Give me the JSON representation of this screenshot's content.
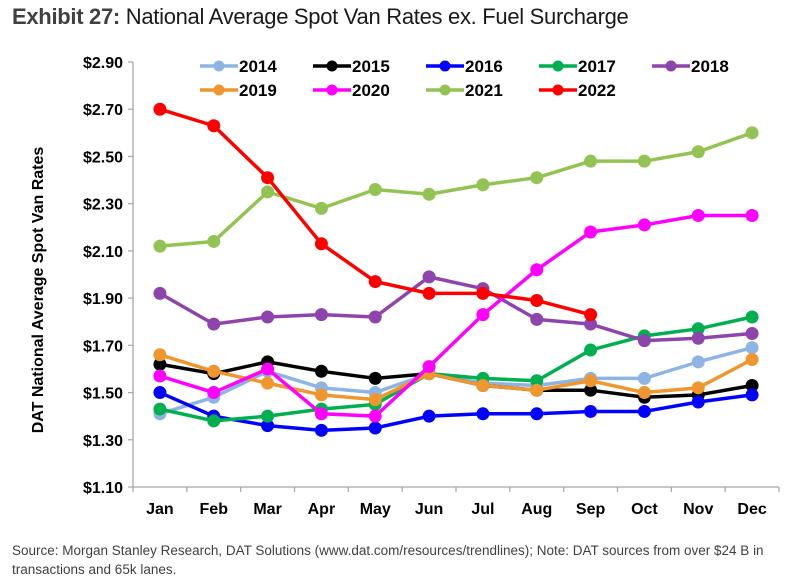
{
  "header": {
    "exhibit": "Exhibit 27:",
    "title": "National Average Spot Van Rates ex. Fuel Surcharge"
  },
  "footer": {
    "source": "Source: Morgan Stanley Research, DAT Solutions (www.dat.com/resources/trendlines); Note: DAT sources from over $24 B in transactions and 65k lanes."
  },
  "chart_data": {
    "type": "line",
    "title": "National Average Spot Van Rates ex. Fuel Surcharge",
    "xlabel": "",
    "ylabel": "DAT National Average Spot Van Rates",
    "categories": [
      "Jan",
      "Feb",
      "Mar",
      "Apr",
      "May",
      "Jun",
      "Jul",
      "Aug",
      "Sep",
      "Oct",
      "Nov",
      "Dec"
    ],
    "ylim": [
      1.1,
      2.9
    ],
    "yticks": [
      1.1,
      1.3,
      1.5,
      1.7,
      1.9,
      2.1,
      2.3,
      2.5,
      2.7,
      2.9
    ],
    "ytick_labels": [
      "$1.10",
      "$1.30",
      "$1.50",
      "$1.70",
      "$1.90",
      "$2.10",
      "$2.30",
      "$2.50",
      "$2.70",
      "$2.90"
    ],
    "grid": false,
    "legend_position": "top",
    "series": [
      {
        "name": "2014",
        "color": "#8db4e2",
        "values": [
          1.41,
          1.48,
          1.59,
          1.52,
          1.5,
          1.58,
          1.54,
          1.53,
          1.56,
          1.56,
          1.63,
          1.69
        ]
      },
      {
        "name": "2015",
        "color": "#000000",
        "values": [
          1.62,
          1.58,
          1.63,
          1.59,
          1.56,
          1.58,
          1.53,
          1.51,
          1.51,
          1.48,
          1.49,
          1.53
        ]
      },
      {
        "name": "2016",
        "color": "#0000ff",
        "values": [
          1.5,
          1.4,
          1.36,
          1.34,
          1.35,
          1.4,
          1.41,
          1.41,
          1.42,
          1.42,
          1.46,
          1.49
        ]
      },
      {
        "name": "2017",
        "color": "#00b050",
        "values": [
          1.43,
          1.38,
          1.4,
          1.43,
          1.45,
          1.58,
          1.56,
          1.55,
          1.68,
          1.74,
          1.77,
          1.82
        ]
      },
      {
        "name": "2018",
        "color": "#8e44ad",
        "values": [
          1.92,
          1.79,
          1.82,
          1.83,
          1.82,
          1.99,
          1.94,
          1.81,
          1.79,
          1.72,
          1.73,
          1.75
        ]
      },
      {
        "name": "2019",
        "color": "#f0962e",
        "values": [
          1.66,
          1.59,
          1.54,
          1.49,
          1.47,
          1.58,
          1.53,
          1.51,
          1.55,
          1.5,
          1.52,
          1.64
        ]
      },
      {
        "name": "2020",
        "color": "#ff00ff",
        "values": [
          1.57,
          1.5,
          1.6,
          1.41,
          1.4,
          1.61,
          1.83,
          2.02,
          2.18,
          2.21,
          2.25,
          2.25
        ]
      },
      {
        "name": "2021",
        "color": "#92c353",
        "values": [
          2.12,
          2.14,
          2.35,
          2.28,
          2.36,
          2.34,
          2.38,
          2.41,
          2.48,
          2.48,
          2.52,
          2.6
        ]
      },
      {
        "name": "2022",
        "color": "#ff0000",
        "values": [
          2.7,
          2.63,
          2.41,
          2.13,
          1.97,
          1.92,
          1.92,
          1.89,
          1.83,
          null,
          null,
          null
        ]
      }
    ]
  }
}
